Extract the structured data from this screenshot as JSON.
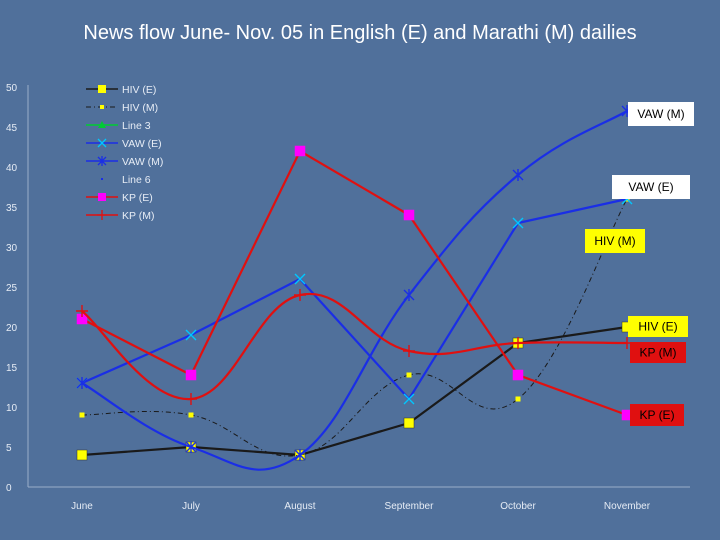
{
  "title": "News flow June- Nov. 05 in English  (E) and Marathi (M) dailies",
  "chart_data": {
    "type": "line",
    "categories": [
      "June",
      "July",
      "August",
      "September",
      "October",
      "November"
    ],
    "ylim": [
      0,
      50
    ],
    "yticks": [
      0,
      5,
      10,
      15,
      20,
      25,
      30,
      35,
      40,
      45,
      50
    ],
    "grid": false,
    "legend_position": "top-left",
    "legend": [
      "HIV (E)",
      "HIV (M)",
      "Line 3",
      "VAW (E)",
      "VAW (M)",
      "Line 6",
      "KP (E)",
      "KP (M)"
    ],
    "series": [
      {
        "name": "HIV (E)",
        "values": [
          4,
          5,
          4,
          8,
          18,
          20
        ],
        "color": "#1a1a1a",
        "marker": "square",
        "marker_color": "#ffff00",
        "dash": "solid",
        "smooth": false
      },
      {
        "name": "HIV (M)",
        "values": [
          9,
          9,
          4,
          14,
          11,
          36
        ],
        "color": "#1a1a1a",
        "marker": "smallsquare",
        "marker_color": "#ffff00",
        "dash": "dashdot",
        "smooth": true
      },
      {
        "name": "VAW (E)",
        "values": [
          13,
          19,
          26,
          11,
          33,
          36
        ],
        "color": "#1a2ee6",
        "marker": "x",
        "marker_color": "#00c8ff",
        "dash": "solid",
        "smooth": false
      },
      {
        "name": "VAW (M)",
        "values": [
          13,
          5,
          4,
          24,
          39,
          47
        ],
        "color": "#1a2ee6",
        "marker": "star",
        "marker_color": "#1a2ee6",
        "dash": "solid",
        "smooth": true
      },
      {
        "name": "KP (E)",
        "values": [
          21,
          14,
          42,
          34,
          14,
          9
        ],
        "color": "#e01010",
        "marker": "square",
        "marker_color": "#ff00ff",
        "dash": "solid",
        "smooth": false
      },
      {
        "name": "KP (M)",
        "values": [
          22,
          11,
          24,
          17,
          18,
          18
        ],
        "color": "#e01010",
        "marker": "plus",
        "marker_color": "#e01010",
        "dash": "solid",
        "smooth": true
      }
    ],
    "callouts": [
      {
        "text": "VAW (M)",
        "value": 47,
        "bg": "#ffffff",
        "fg": "#000000"
      },
      {
        "text": "VAW (E)",
        "value": 36,
        "bg": "#ffffff",
        "fg": "#000000"
      },
      {
        "text": "HIV (M)",
        "value": 30,
        "bg": "#ffff00",
        "fg": "#000000"
      },
      {
        "text": "HIV (E)",
        "value": 20,
        "bg": "#ffff00",
        "fg": "#000000"
      },
      {
        "text": "KP (M)",
        "value": 17,
        "bg": "#e01010",
        "fg": "#000000"
      },
      {
        "text": "KP (E)",
        "value": 9,
        "bg": "#e01010",
        "fg": "#000000"
      }
    ]
  }
}
